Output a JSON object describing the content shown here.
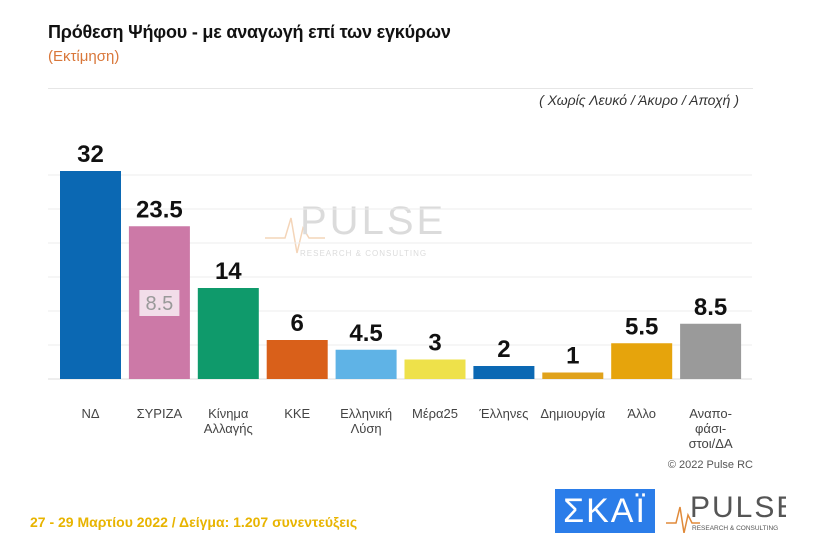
{
  "title": "Πρόθεση Ψήφου - με αναγωγή επί των εγκύρων",
  "subtitle": "(Εκτίμηση)",
  "note": "( Χωρίς Λευκό / Άκυρο / Αποχή )",
  "copyright": "© 2022 Pulse RC",
  "footer": "27 - 29  Μαρτίου  2022  /  Δείγμα:  1.207 συνεντεύξεις",
  "logos": {
    "skai": "ΣΚΑΪ",
    "pulse": "PULSE",
    "pulse_tag": "RESEARCH & CONSULTING"
  },
  "chart_data": {
    "type": "bar",
    "title": "Πρόθεση Ψήφου - με αναγωγή επί των εγκύρων",
    "categories": [
      [
        "ΝΔ"
      ],
      [
        "ΣΥΡΙΖΑ"
      ],
      [
        "Κίνημα",
        "Αλλαγής"
      ],
      [
        "ΚΚΕ"
      ],
      [
        "Ελληνική",
        "Λύση"
      ],
      [
        "Μέρα25"
      ],
      [
        "Έλληνες"
      ],
      [
        "Δημιουργία"
      ],
      [
        "Άλλο"
      ],
      [
        "Αναπο-",
        "φάσι-",
        "στοι/ΔΑ"
      ]
    ],
    "values": [
      32,
      23.5,
      14,
      6,
      4.5,
      3,
      2,
      1,
      5.5,
      8.5
    ],
    "value_labels": [
      "32",
      "23.5",
      "14",
      "6",
      "4.5",
      "3",
      "2",
      "1",
      "5.5",
      "8.5"
    ],
    "colors": [
      "#0b68b3",
      "#cc79a7",
      "#0f9a6b",
      "#d9601a",
      "#5fb3e6",
      "#eee14a",
      "#0b68b3",
      "#e0a21b",
      "#e6a40c",
      "#9a9a9a"
    ],
    "overlay_label": "8.5",
    "ylim": [
      0,
      34
    ],
    "grid": true
  }
}
